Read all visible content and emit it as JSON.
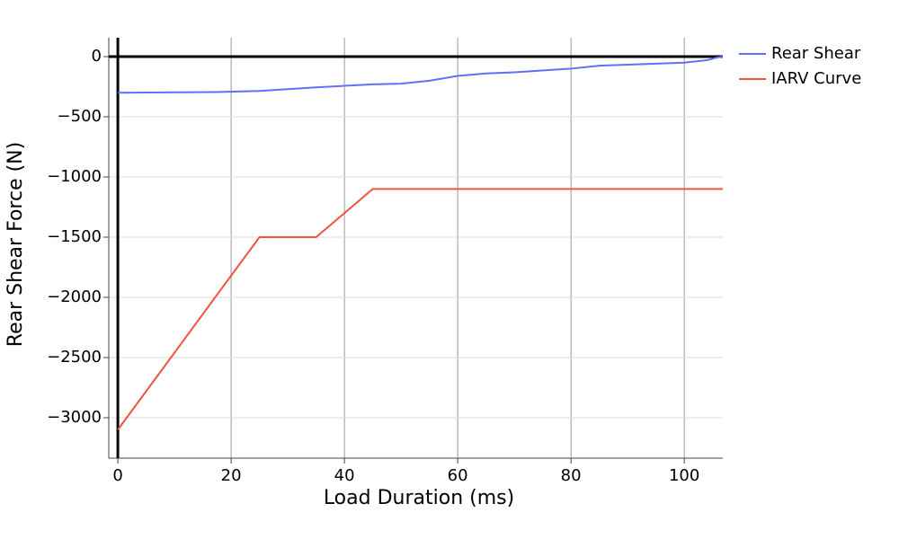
{
  "chart_data": {
    "type": "line",
    "xlabel": "Load Duration (ms)",
    "ylabel": "Rear Shear Force (N)",
    "xlim": [
      -1.6,
      106.8
    ],
    "ylim": [
      -3336,
      157
    ],
    "xticks": [
      0,
      20,
      40,
      60,
      80,
      100
    ],
    "yticks": [
      0,
      {
        "value": -500,
        "label": "−500"
      },
      {
        "value": -1000,
        "label": "−1000"
      },
      {
        "value": -1500,
        "label": "−1500"
      },
      {
        "value": -2000,
        "label": "−2000"
      },
      {
        "value": -2500,
        "label": "−2500"
      },
      {
        "value": -3000,
        "label": "−3000"
      }
    ],
    "grid": true,
    "legend": "outside-top-right",
    "series": [
      {
        "name": "Rear Shear",
        "color": "#636efa",
        "x": [
          0,
          5,
          17,
          25,
          35,
          45,
          50,
          55,
          60,
          65,
          70,
          80,
          85,
          100,
          104,
          106,
          106.8
        ],
        "y": [
          -300,
          -298,
          -295,
          -285,
          -255,
          -230,
          -225,
          -200,
          -160,
          -140,
          -130,
          -100,
          -75,
          -50,
          -30,
          -5,
          0
        ]
      },
      {
        "name": "IARV Curve",
        "color": "#ef553b",
        "x": [
          0,
          25,
          35,
          45,
          106.8
        ],
        "y": [
          -3100,
          -1500,
          -1500,
          -1100,
          -1100
        ]
      }
    ]
  }
}
